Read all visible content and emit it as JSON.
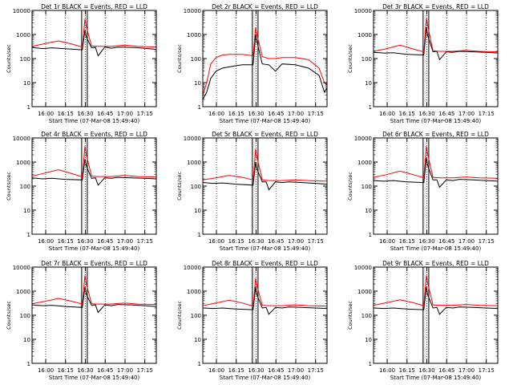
{
  "chart_data": {
    "type": "line",
    "ylabel": "Counts/sec",
    "xlabel": "Start Time (07-Mar-08 15:49:40)",
    "y_scale": "log",
    "ylim": [
      1,
      10000
    ],
    "y_ticks": [
      1,
      10,
      100,
      1000,
      10000
    ],
    "y_tick_labels": [
      "1",
      "10",
      "100",
      "1000",
      "10000"
    ],
    "x_unit": "minutes since 15:49:40",
    "xlim": [
      0,
      94
    ],
    "x_ticks": [
      10.33,
      25.33,
      40.33,
      55.33,
      70.33,
      85.33
    ],
    "x_tick_labels": [
      "16:00",
      "16:15",
      "16:30",
      "16:45",
      "17:00",
      "17:15"
    ],
    "grid": "dotted vertical lines at 15-minute ticks",
    "colors": {
      "events": "#000000",
      "lld": "#ff0000"
    },
    "panels": [
      {
        "title": "Det 1r BLACK = Events, RED = LLD",
        "series": [
          {
            "name": "Events",
            "color": "#000000",
            "x": [
              0,
              8,
              15,
              25,
              38,
              40,
              41,
              45,
              48,
              50,
              55,
              60,
              65,
              75,
              85,
              94
            ],
            "values": [
              290,
              260,
              280,
              255,
              230,
              1500,
              800,
              280,
              290,
              130,
              300,
              270,
              300,
              290,
              270,
              240
            ]
          },
          {
            "name": "LLD",
            "color": "#ff0000",
            "x": [
              0,
              10,
              20,
              30,
              38,
              40,
              41,
              45,
              50,
              60,
              70,
              80,
              94
            ],
            "values": [
              320,
              420,
              540,
              400,
              300,
              4500,
              2200,
              330,
              320,
              320,
              360,
              320,
              300
            ]
          }
        ]
      },
      {
        "title": "Det 2r BLACK = Events, RED = LLD",
        "series": [
          {
            "name": "Events",
            "color": "#000000",
            "x": [
              0,
              3,
              6,
              10,
              15,
              20,
              25,
              30,
              38,
              40,
              41,
              45,
              50,
              55,
              60,
              70,
              80,
              88,
              92,
              94
            ],
            "values": [
              2,
              4,
              15,
              30,
              40,
              45,
              50,
              55,
              55,
              1000,
              500,
              60,
              55,
              30,
              60,
              55,
              40,
              20,
              4,
              6
            ]
          },
          {
            "name": "LLD",
            "color": "#ff0000",
            "x": [
              0,
              3,
              6,
              10,
              15,
              20,
              25,
              30,
              38,
              40,
              41,
              45,
              50,
              55,
              60,
              70,
              80,
              88,
              92,
              94
            ],
            "values": [
              3,
              10,
              60,
              110,
              140,
              150,
              150,
              150,
              130,
              2000,
              1000,
              120,
              100,
              100,
              110,
              110,
              90,
              40,
              10,
              8
            ]
          }
        ]
      },
      {
        "title": "Det 3r BLACK = Events, RED = LLD",
        "series": [
          {
            "name": "Events",
            "color": "#000000",
            "x": [
              0,
              8,
              15,
              25,
              38,
              40,
              41,
              45,
              48,
              50,
              55,
              60,
              65,
              75,
              85,
              94
            ],
            "values": [
              180,
              170,
              175,
              150,
              140,
              2000,
              900,
              190,
              200,
              90,
              190,
              180,
              200,
              190,
              180,
              170
            ]
          },
          {
            "name": "LLD",
            "color": "#ff0000",
            "x": [
              0,
              10,
              20,
              30,
              38,
              40,
              41,
              45,
              50,
              60,
              70,
              80,
              94
            ],
            "values": [
              200,
              260,
              360,
              250,
              190,
              4800,
              2300,
              210,
              200,
              200,
              220,
              200,
              190
            ]
          }
        ]
      },
      {
        "title": "Det 4r BLACK = Events, RED = LLD",
        "series": [
          {
            "name": "Events",
            "color": "#000000",
            "x": [
              0,
              8,
              15,
              25,
              38,
              40,
              41,
              45,
              48,
              50,
              55,
              60,
              65,
              75,
              85,
              94
            ],
            "values": [
              220,
              200,
              210,
              190,
              180,
              1300,
              700,
              210,
              220,
              110,
              220,
              210,
              230,
              220,
              210,
              200
            ]
          },
          {
            "name": "LLD",
            "color": "#ff0000",
            "x": [
              0,
              10,
              20,
              30,
              38,
              40,
              41,
              45,
              50,
              60,
              70,
              80,
              94
            ],
            "values": [
              260,
              350,
              480,
              330,
              240,
              4500,
              2100,
              260,
              250,
              250,
              280,
              250,
              240
            ]
          }
        ]
      },
      {
        "title": "Det 5r BLACK = Events, RED = LLD",
        "series": [
          {
            "name": "Events",
            "color": "#000000",
            "x": [
              0,
              8,
              15,
              25,
              38,
              40,
              41,
              45,
              48,
              50,
              55,
              60,
              65,
              75,
              85,
              94
            ],
            "values": [
              140,
              130,
              135,
              120,
              110,
              1000,
              500,
              150,
              150,
              70,
              150,
              140,
              150,
              140,
              130,
              120
            ]
          },
          {
            "name": "LLD",
            "color": "#ff0000",
            "x": [
              0,
              10,
              20,
              30,
              38,
              40,
              41,
              45,
              50,
              60,
              70,
              80,
              94
            ],
            "values": [
              180,
              220,
              280,
              230,
              180,
              3500,
              1600,
              180,
              170,
              170,
              180,
              170,
              160
            ]
          }
        ]
      },
      {
        "title": "Det 6r BLACK = Events, RED = LLD",
        "series": [
          {
            "name": "Events",
            "color": "#000000",
            "x": [
              0,
              8,
              15,
              25,
              38,
              40,
              41,
              45,
              48,
              50,
              55,
              60,
              65,
              75,
              85,
              94
            ],
            "values": [
              170,
              160,
              170,
              150,
              140,
              1500,
              700,
              180,
              180,
              90,
              180,
              170,
              190,
              180,
              170,
              160
            ]
          },
          {
            "name": "LLD",
            "color": "#ff0000",
            "x": [
              0,
              10,
              20,
              30,
              38,
              40,
              41,
              45,
              50,
              60,
              70,
              80,
              94
            ],
            "values": [
              230,
              300,
              420,
              300,
              220,
              4500,
              2100,
              230,
              220,
              220,
              240,
              220,
              210
            ]
          }
        ]
      },
      {
        "title": "Det 7r BLACK = Events, RED = LLD",
        "series": [
          {
            "name": "Events",
            "color": "#000000",
            "x": [
              0,
              8,
              15,
              25,
              38,
              40,
              41,
              45,
              48,
              50,
              55,
              60,
              65,
              75,
              85,
              94
            ],
            "values": [
              270,
              250,
              260,
              230,
              210,
              1500,
              750,
              260,
              270,
              130,
              270,
              250,
              280,
              270,
              250,
              230
            ]
          },
          {
            "name": "LLD",
            "color": "#ff0000",
            "x": [
              0,
              10,
              20,
              30,
              38,
              40,
              41,
              45,
              50,
              60,
              70,
              80,
              94
            ],
            "values": [
              300,
              380,
              500,
              380,
              290,
              4500,
              2100,
              300,
              290,
              290,
              320,
              290,
              280
            ]
          }
        ]
      },
      {
        "title": "Det 8r BLACK = Events, RED = LLD",
        "series": [
          {
            "name": "Events",
            "color": "#000000",
            "x": [
              0,
              8,
              15,
              25,
              38,
              40,
              41,
              45,
              48,
              50,
              55,
              60,
              65,
              75,
              85,
              94
            ],
            "values": [
              200,
              190,
              200,
              180,
              170,
              1500,
              700,
              200,
              210,
              110,
              210,
              200,
              220,
              210,
              200,
              190
            ]
          },
          {
            "name": "LLD",
            "color": "#ff0000",
            "x": [
              0,
              10,
              20,
              30,
              38,
              40,
              41,
              45,
              50,
              60,
              70,
              80,
              94
            ],
            "values": [
              250,
              320,
              420,
              320,
              240,
              3500,
              1700,
              260,
              250,
              250,
              270,
              250,
              240
            ]
          }
        ]
      },
      {
        "title": "Det 9r BLACK = Events, RED = LLD",
        "series": [
          {
            "name": "Events",
            "color": "#000000",
            "x": [
              0,
              8,
              15,
              25,
              38,
              40,
              41,
              45,
              48,
              50,
              55,
              60,
              65,
              75,
              85,
              94
            ],
            "values": [
              200,
              190,
              200,
              180,
              170,
              1500,
              700,
              200,
              210,
              110,
              210,
              200,
              220,
              210,
              200,
              190
            ]
          },
          {
            "name": "LLD",
            "color": "#ff0000",
            "x": [
              0,
              10,
              20,
              30,
              38,
              40,
              41,
              45,
              50,
              60,
              70,
              80,
              94
            ],
            "values": [
              260,
              330,
              440,
              330,
              250,
              4500,
              2100,
              270,
              260,
              260,
              280,
              260,
              250
            ]
          }
        ]
      }
    ]
  }
}
